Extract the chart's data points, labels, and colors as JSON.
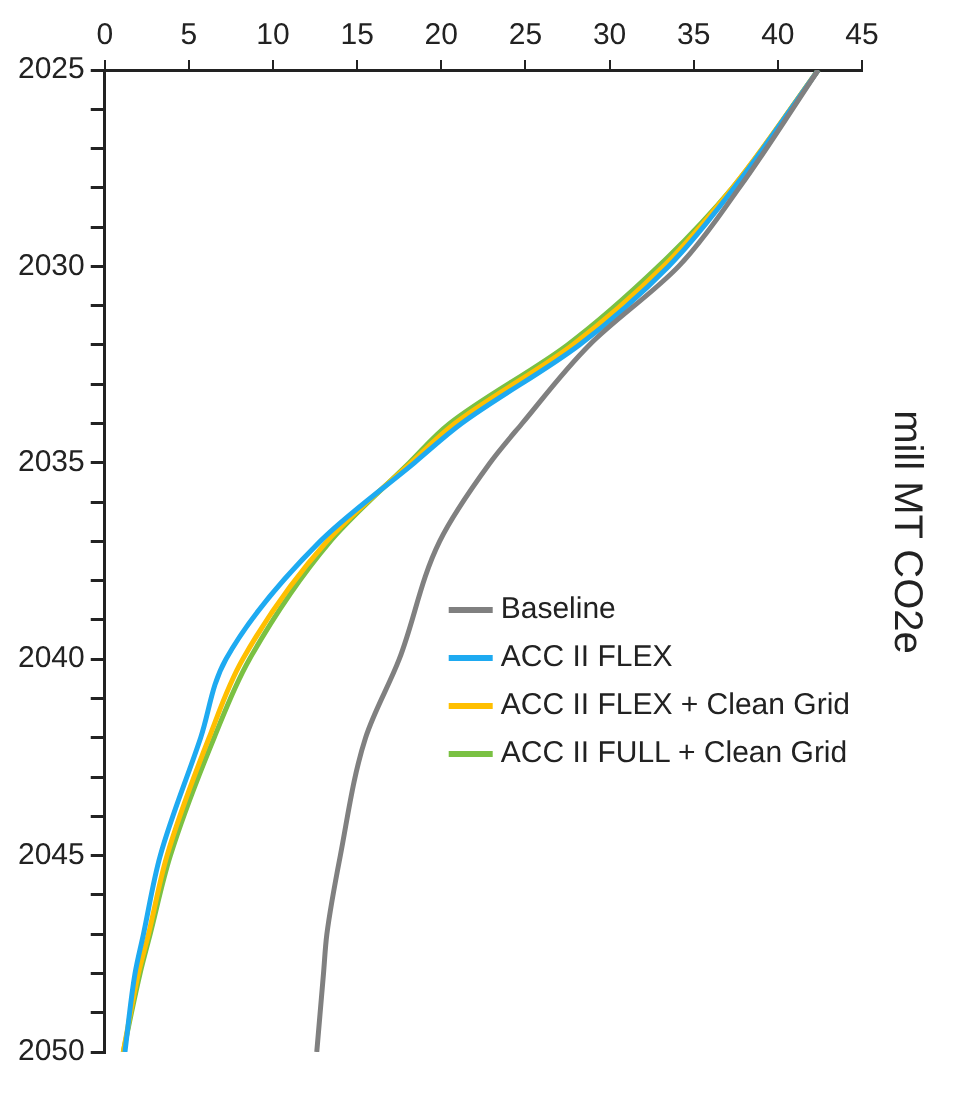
{
  "chart_data": {
    "type": "line",
    "title": "mill MT CO2e",
    "series": [
      {
        "name": "Baseline",
        "color": "#808080",
        "x": [
          42.4,
          37.7,
          34.1,
          28.8,
          24.8,
          22.9,
          19.9,
          17.5,
          15.5,
          14.0,
          13.2,
          13.0,
          12.6
        ],
        "values": [
          2025,
          2028,
          2030,
          2032,
          2034,
          2035,
          2037,
          2040,
          2042,
          2045,
          2047,
          2048,
          2050
        ]
      },
      {
        "name": "ACC II FLEX",
        "color": "#1eaaf1",
        "x": [
          42.4,
          37.4,
          33.5,
          28.2,
          21.2,
          18.4,
          12.8,
          7.2,
          5.7,
          3.3,
          2.3,
          1.8,
          1.2
        ],
        "values": [
          2025,
          2028,
          2030,
          2032,
          2034,
          2035,
          2037,
          2040,
          2042,
          2045,
          2047,
          2048,
          2050
        ]
      },
      {
        "name": "ACC II FLEX + Clean Grid",
        "color": "#ffbf00",
        "x": [
          42.4,
          37.3,
          33.2,
          27.8,
          20.8,
          18.2,
          13.2,
          8.2,
          6.2,
          3.7,
          2.6,
          2.0,
          1.1
        ],
        "values": [
          2025,
          2028,
          2030,
          2032,
          2034,
          2035,
          2037,
          2040,
          2042,
          2045,
          2047,
          2048,
          2050
        ]
      },
      {
        "name": "ACC II FULL + Clean Grid",
        "color": "#7ac143",
        "x": [
          42.4,
          37.3,
          32.9,
          27.5,
          20.5,
          18.1,
          13.4,
          8.6,
          6.5,
          3.9,
          2.7,
          2.1,
          1.1
        ],
        "values": [
          2025,
          2028,
          2030,
          2032,
          2034,
          2035,
          2037,
          2040,
          2042,
          2045,
          2047,
          2048,
          2050
        ]
      }
    ],
    "ylim": [
      2050,
      2025
    ],
    "yticks": [
      2025,
      {
        "value": 2026,
        "label": null
      },
      {
        "value": 2027,
        "label": null
      },
      {
        "value": 2028,
        "label": null
      },
      {
        "value": 2029,
        "label": null
      },
      2030,
      {
        "value": 2031,
        "label": null
      },
      {
        "value": 2032,
        "label": null
      },
      {
        "value": 2033,
        "label": null
      },
      {
        "value": 2034,
        "label": null
      },
      2035,
      {
        "value": 2036,
        "label": null
      },
      {
        "value": 2037,
        "label": null
      },
      {
        "value": 2038,
        "label": null
      },
      {
        "value": 2039,
        "label": null
      },
      2040,
      {
        "value": 2041,
        "label": null
      },
      {
        "value": 2042,
        "label": null
      },
      {
        "value": 2043,
        "label": null
      },
      {
        "value": 2044,
        "label": null
      },
      2045,
      {
        "value": 2046,
        "label": null
      },
      {
        "value": 2047,
        "label": null
      },
      {
        "value": 2048,
        "label": null
      },
      {
        "value": 2049,
        "label": null
      },
      2050
    ],
    "xlim": [
      0,
      45
    ],
    "xticks": [
      0,
      5,
      10,
      15,
      20,
      25,
      30,
      35,
      40,
      45
    ],
    "grid": false,
    "legend": "right",
    "marker": "none",
    "line_style": "solid"
  }
}
